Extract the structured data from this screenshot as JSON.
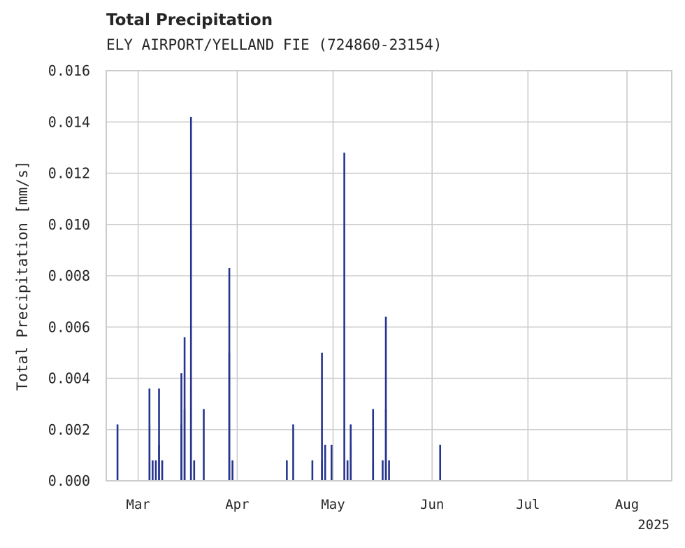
{
  "chart_data": {
    "type": "bar",
    "title": "Total Precipitation",
    "subtitle": "ELY AIRPORT/YELLAND FIE (724860-23154)",
    "xlabel": "",
    "ylabel": "Total Precipitation [mm/s]",
    "x_range": [
      "2025-02-19",
      "2025-08-15"
    ],
    "ylim": [
      0,
      0.016
    ],
    "y_ticks": [
      "0.000",
      "0.002",
      "0.004",
      "0.006",
      "0.008",
      "0.010",
      "0.012",
      "0.014",
      "0.016"
    ],
    "x_ticks": [
      {
        "date": "2025-03-01",
        "label": "Mar"
      },
      {
        "date": "2025-04-01",
        "label": "Apr"
      },
      {
        "date": "2025-05-01",
        "label": "May"
      },
      {
        "date": "2025-06-01",
        "label": "Jun"
      },
      {
        "date": "2025-07-01",
        "label": "Jul"
      },
      {
        "date": "2025-08-01",
        "label": "Aug"
      }
    ],
    "x_offset_label": "2025",
    "grid": true,
    "bar_color": "#26348f",
    "series": [
      {
        "name": "Total Precipitation",
        "points": [
          {
            "date": "2025-02-22",
            "value": 0.0022
          },
          {
            "date": "2025-03-04",
            "value": 0.0022
          },
          {
            "date": "2025-03-04",
            "value": 0.0036
          },
          {
            "date": "2025-03-05",
            "value": 0.0008
          },
          {
            "date": "2025-03-06",
            "value": 0.0008
          },
          {
            "date": "2025-03-07",
            "value": 0.0036
          },
          {
            "date": "2025-03-07",
            "value": 0.0014
          },
          {
            "date": "2025-03-08",
            "value": 0.0008
          },
          {
            "date": "2025-03-14",
            "value": 0.0042
          },
          {
            "date": "2025-03-14",
            "value": 0.0022
          },
          {
            "date": "2025-03-15",
            "value": 0.0056
          },
          {
            "date": "2025-03-15",
            "value": 0.0028
          },
          {
            "date": "2025-03-17",
            "value": 0.0142
          },
          {
            "date": "2025-03-17",
            "value": 0.0036
          },
          {
            "date": "2025-03-18",
            "value": 0.0008
          },
          {
            "date": "2025-03-21",
            "value": 0.0028
          },
          {
            "date": "2025-03-29",
            "value": 0.005
          },
          {
            "date": "2025-03-29",
            "value": 0.0083
          },
          {
            "date": "2025-03-30",
            "value": 0.0008
          },
          {
            "date": "2025-04-16",
            "value": 0.0008
          },
          {
            "date": "2025-04-18",
            "value": 0.0022
          },
          {
            "date": "2025-04-24",
            "value": 0.0008
          },
          {
            "date": "2025-04-27",
            "value": 0.0008
          },
          {
            "date": "2025-04-27",
            "value": 0.005
          },
          {
            "date": "2025-04-28",
            "value": 0.0014
          },
          {
            "date": "2025-04-30",
            "value": 0.0014
          },
          {
            "date": "2025-05-04",
            "value": 0.0128
          },
          {
            "date": "2025-05-05",
            "value": 0.0008
          },
          {
            "date": "2025-05-06",
            "value": 0.0022
          },
          {
            "date": "2025-05-06",
            "value": 0.0014
          },
          {
            "date": "2025-05-13",
            "value": 0.0028
          },
          {
            "date": "2025-05-13",
            "value": 0.0008
          },
          {
            "date": "2025-05-16",
            "value": 0.0008
          },
          {
            "date": "2025-05-17",
            "value": 0.0064
          },
          {
            "date": "2025-05-17",
            "value": 0.0028
          },
          {
            "date": "2025-05-18",
            "value": 0.0008
          },
          {
            "date": "2025-06-03",
            "value": 0.0014
          }
        ]
      }
    ]
  }
}
